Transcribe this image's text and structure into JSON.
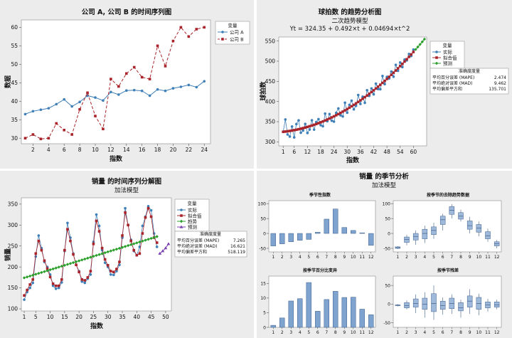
{
  "colors": {
    "bg": "#ececec",
    "plotbg": "#ffffff",
    "blue": "#3f7fb7",
    "red": "#a8242a",
    "green": "#2ca02c",
    "purple": "#7a3fb0",
    "bar": "#7fa3cf",
    "box": "#9fb9db"
  },
  "chart_data": [
    {
      "type": "line",
      "title": "公司 A, 公司 B 的时间序列图",
      "xlabel": "指数",
      "ylabel": "数据",
      "xticks": [
        2,
        4,
        6,
        8,
        10,
        12,
        14,
        16,
        18,
        20,
        22,
        24
      ],
      "yticks": [
        30,
        35,
        40,
        45,
        50,
        55,
        60
      ],
      "xlim": [
        0.5,
        24.8
      ],
      "ylim": [
        28.5,
        62
      ],
      "legend_title": "变量",
      "series": [
        {
          "name": "公司 A",
          "color": "blue",
          "marker": "circle",
          "dash": false,
          "x": [
            1,
            2,
            3,
            4,
            5,
            6,
            7,
            8,
            9,
            10,
            11,
            12,
            13,
            14,
            15,
            16,
            17,
            18,
            19,
            20,
            21,
            22,
            23,
            24
          ],
          "y": [
            36.5,
            37.3,
            37.7,
            38.1,
            39.2,
            40.5,
            38.6,
            39.8,
            41.5,
            41.0,
            40.2,
            42.5,
            41.8,
            42.9,
            43.0,
            42.8,
            41.5,
            43.2,
            42.8,
            43.5,
            43.9,
            44.4,
            43.8,
            45.4
          ]
        },
        {
          "name": "公司 B",
          "color": "red",
          "marker": "square",
          "dash": true,
          "x": [
            1,
            2,
            3,
            4,
            5,
            6,
            7,
            8,
            9,
            10,
            11,
            12,
            13,
            14,
            15,
            16,
            17,
            18,
            19,
            20,
            21,
            22,
            23,
            24
          ],
          "y": [
            30.0,
            31.0,
            29.8,
            30.0,
            34.0,
            32.2,
            31.0,
            37.8,
            42.3,
            36.0,
            32.5,
            46.0,
            44.0,
            47.5,
            49.2,
            46.5,
            46.0,
            55.0,
            49.5,
            56.3,
            60.0,
            57.5,
            59.5,
            60.0
          ]
        }
      ]
    },
    {
      "type": "line",
      "title": "球拍数 的趋势分析图",
      "subtitle": "二次趋势模型",
      "equation": "Yt = 324.35 + 0.492×t + 0.04694×t^2",
      "xlabel": "指数",
      "ylabel": "球拍数",
      "xticks": [
        1,
        6,
        12,
        18,
        24,
        30,
        36,
        42,
        48,
        54,
        60
      ],
      "yticks": [
        300,
        350,
        400,
        450,
        500,
        550
      ],
      "xlim": [
        -1,
        66
      ],
      "ylim": [
        290,
        560
      ],
      "legend_title": "变量",
      "legend": [
        "实际",
        "拟合值",
        "预测"
      ],
      "accuracy": {
        "title": "准确度度量",
        "rows": [
          [
            "平均百分误差 (MAPE)",
            "2.474"
          ],
          [
            "平均绝对误差 (MAD)",
            "9.462"
          ],
          [
            "平均偏差平方和",
            "135.701"
          ]
        ]
      },
      "model": {
        "a": 324.35,
        "b": 0.492,
        "c": 0.04694,
        "n": 60,
        "forecast": [
          61,
          62,
          63,
          64,
          65
        ]
      },
      "actual_noise": [
        0,
        30,
        -8,
        -14,
        10,
        -18,
        14,
        22,
        -10,
        -6,
        9,
        -15,
        -8,
        13,
        -12,
        5,
        10,
        -7,
        -12,
        17,
        -4,
        11,
        -8,
        -13,
        6,
        14,
        -6,
        -12,
        19,
        -9,
        7,
        14,
        -11,
        -6,
        17,
        -9,
        5,
        -14,
        13,
        -5,
        9,
        -10,
        12,
        -6,
        -11,
        17,
        -8,
        5,
        -4,
        8,
        -10,
        14,
        -6,
        9,
        -8,
        5,
        -3,
        7,
        -4,
        6
      ]
    },
    {
      "type": "line",
      "title": "销量 的时间序列分解图",
      "subtitle": "加法模型",
      "xlabel": "指数",
      "ylabel": "销量",
      "xticks": [
        1,
        5,
        10,
        15,
        20,
        25,
        30,
        35,
        40,
        45,
        50
      ],
      "yticks": [
        100,
        150,
        200,
        250,
        300,
        350
      ],
      "xlim": [
        0,
        52
      ],
      "ylim": [
        95,
        365
      ],
      "legend_title": "变量",
      "legend": [
        "实际",
        "拟合值",
        "趋势",
        "预测"
      ],
      "accuracy": {
        "title": "准确度度量",
        "rows": [
          [
            "平均百分误差 (MAPE)",
            "7.265"
          ],
          [
            "平均绝对误差 (MAD)",
            "16.621"
          ],
          [
            "平均偏差平方和",
            "518.119"
          ]
        ]
      },
      "actual": [
        122,
        140,
        150,
        162,
        225,
        275,
        245,
        212,
        200,
        182,
        155,
        148,
        150,
        163,
        238,
        305,
        270,
        232,
        205,
        190,
        165,
        162,
        172,
        182,
        260,
        325,
        298,
        240,
        210,
        200,
        182,
        181,
        190,
        205,
        270,
        340,
        300,
        265,
        238,
        228,
        248,
        298,
        320,
        345,
        335,
        280,
        248
      ],
      "fitted": [
        132,
        145,
        158,
        170,
        232,
        262,
        240,
        215,
        196,
        176,
        160,
        155,
        155,
        170,
        240,
        290,
        262,
        230,
        205,
        188,
        170,
        168,
        175,
        190,
        255,
        310,
        285,
        245,
        218,
        204,
        190,
        188,
        195,
        212,
        275,
        330,
        300,
        262,
        240,
        228,
        232,
        280,
        318,
        340,
        320,
        270,
        258
      ],
      "trend": {
        "start": 174,
        "slope": 2.14,
        "n": 47
      },
      "forecast": {
        "x": [
          48,
          49,
          50,
          51
        ],
        "y": [
          232,
          238,
          245,
          255
        ]
      }
    },
    {
      "type": "bar",
      "title": "销量 的季节分析",
      "subtitle": "加法模型",
      "panels": [
        {
          "title": "季节性指数",
          "type": "bar",
          "categories": [
            "1",
            "2",
            "3",
            "4",
            "5",
            "6",
            "7",
            "8",
            "9",
            "10",
            "11",
            "12"
          ],
          "yticks": [
            -50,
            0,
            50,
            100
          ],
          "ylim": [
            -62,
            110
          ],
          "values": [
            -42,
            -35,
            -28,
            -23,
            -20,
            4,
            48,
            82,
            20,
            10,
            2,
            -40
          ]
        },
        {
          "title": "按季节的去除趋势数据",
          "type": "box",
          "categories": [
            "1",
            "2",
            "3",
            "4",
            "5",
            "6",
            "7",
            "8",
            "9",
            "10",
            "11",
            "12"
          ],
          "yticks": [
            -50,
            0,
            50,
            100
          ],
          "ylim": [
            -62,
            110
          ],
          "boxes": [
            [
              -52,
              -50,
              -48,
              -45,
              -43
            ],
            [
              -40,
              -30,
              -20,
              -12,
              -5
            ],
            [
              -38,
              -22,
              -10,
              0,
              10
            ],
            [
              -32,
              -18,
              0,
              14,
              26
            ],
            [
              -18,
              -4,
              10,
              22,
              36
            ],
            [
              10,
              30,
              46,
              58,
              66
            ],
            [
              50,
              64,
              78,
              90,
              98
            ],
            [
              40,
              48,
              58,
              70,
              80
            ],
            [
              0,
              14,
              26,
              42,
              56
            ],
            [
              -10,
              4,
              18,
              30,
              40
            ],
            [
              -28,
              -18,
              -8,
              6,
              16
            ],
            [
              -50,
              -42,
              -34,
              -28,
              -22
            ]
          ]
        },
        {
          "title": "按季节百分比变异",
          "type": "bar",
          "categories": [
            "1",
            "2",
            "3",
            "4",
            "5",
            "6",
            "7",
            "8",
            "9",
            "10",
            "11",
            "12"
          ],
          "yticks": [
            0,
            5,
            10,
            15
          ],
          "ylim": [
            0,
            17.5
          ],
          "values": [
            0.7,
            3.2,
            9.0,
            9.8,
            15.3,
            5.5,
            9.5,
            12.3,
            10.2,
            10.3,
            6.2,
            4.3
          ]
        },
        {
          "title": "按季节残差",
          "type": "box",
          "categories": [
            "1",
            "2",
            "3",
            "4",
            "5",
            "6",
            "7",
            "8",
            "9",
            "10",
            "11",
            "12"
          ],
          "yticks": [
            -50,
            0,
            50
          ],
          "ylim": [
            -62,
            75
          ],
          "boxes": [
            [
              -6,
              -4,
              -3,
              -2,
              0
            ],
            [
              -14,
              -10,
              -4,
              4,
              10
            ],
            [
              -24,
              -8,
              2,
              14,
              26
            ],
            [
              -36,
              -14,
              0,
              16,
              32
            ],
            [
              -42,
              -20,
              2,
              28,
              50
            ],
            [
              -28,
              -14,
              -4,
              8,
              18
            ],
            [
              -26,
              -12,
              2,
              16,
              26
            ],
            [
              -36,
              -18,
              -10,
              4,
              12
            ],
            [
              -26,
              -8,
              8,
              22,
              40
            ],
            [
              -30,
              -14,
              2,
              18,
              28
            ],
            [
              -20,
              -10,
              -2,
              6,
              14
            ],
            [
              -14,
              -8,
              -2,
              6,
              12
            ]
          ]
        }
      ]
    }
  ]
}
